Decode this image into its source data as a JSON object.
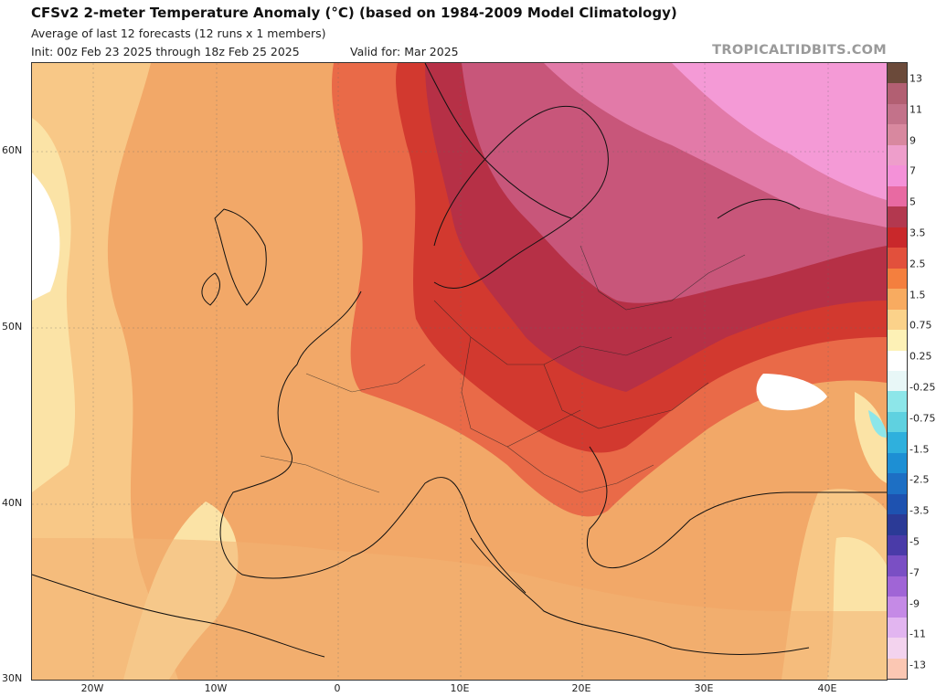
{
  "header": {
    "title": "CFSv2 2-meter Temperature Anomaly (°C) (based on 1984-2009 Model Climatology)",
    "subtitle": "Average of last 12 forecasts (12 runs x 1 members)",
    "init": "Init: 00z Feb 23 2025 through 18z Feb 25 2025",
    "valid": "Valid for: Mar 2025",
    "watermark": "TROPICALTIDBITS.COM"
  },
  "map": {
    "lat_labels": [
      "60N",
      "50N",
      "40N",
      "30N"
    ],
    "lon_labels": [
      "20W",
      "10W",
      "0",
      "10E",
      "20E",
      "30E",
      "40E"
    ]
  },
  "colorbar": {
    "labels": [
      "13",
      "11",
      "9",
      "7",
      "5",
      "3.5",
      "2.5",
      "1.5",
      "0.75",
      "0.25",
      "-0.25",
      "-0.75",
      "-1.5",
      "-2.5",
      "-3.5",
      "-5",
      "-7",
      "-9",
      "-11",
      "-13"
    ],
    "colors": [
      "#6b4a3a",
      "#b25f72",
      "#c3728a",
      "#d8889f",
      "#ee9ecb",
      "#f491d8",
      "#e86aa2",
      "#b3384f",
      "#c9282b",
      "#e2503c",
      "#f47f3e",
      "#f8ab60",
      "#fbd28a",
      "#fdf1b6",
      "#ffffff",
      "#e8f7f7",
      "#8de6e9",
      "#5fd1e0",
      "#2fb0dd",
      "#1d8fd4",
      "#1d6fc4",
      "#1e52b0",
      "#2b3a96",
      "#4a3ba8",
      "#7a4fc4",
      "#a065d6",
      "#c58ae6",
      "#e2b5f0",
      "#f3d3ee",
      "#fbc7b3"
    ]
  }
}
